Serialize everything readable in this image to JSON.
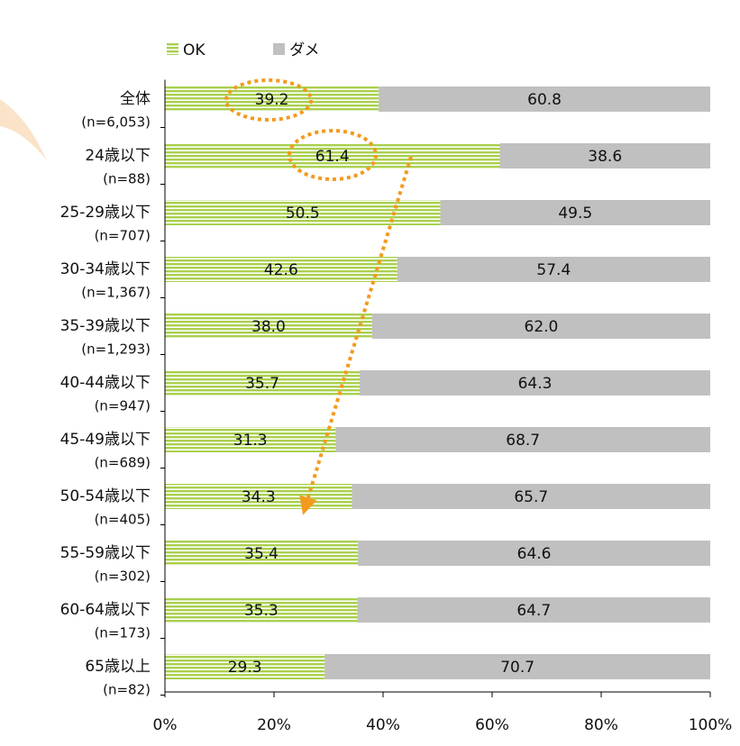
{
  "chart_data": {
    "type": "stacked-barh",
    "categories": [
      "全体",
      "24歳以下",
      "25-29歳以下",
      "30-34歳以下",
      "35-39歳以下",
      "40-44歳以下",
      "45-49歳以下",
      "50-54歳以下",
      "55-59歳以下",
      "60-64歳以下",
      "65歳以上"
    ],
    "sample_sizes": [
      "(n=6,053)",
      "(n=88)",
      "(n=707)",
      "(n=1,367)",
      "(n=1,293)",
      "(n=947)",
      "(n=689)",
      "(n=405)",
      "(n=302)",
      "(n=173)",
      "(n=82)"
    ],
    "series": [
      {
        "name": "OK",
        "color": "#a9d04d",
        "values": [
          39.2,
          61.4,
          50.5,
          42.6,
          38.0,
          35.7,
          31.3,
          34.3,
          35.4,
          35.3,
          29.3
        ],
        "value_labels": [
          "39.2",
          "61.4",
          "50.5",
          "42.6",
          "38.0",
          "35.7",
          "31.3",
          "34.3",
          "35.4",
          "35.3",
          "29.3"
        ]
      },
      {
        "name": "ダメ",
        "color": "#c0c0c0",
        "values": [
          60.8,
          38.6,
          49.5,
          57.4,
          62.0,
          64.3,
          68.7,
          65.7,
          64.6,
          64.7,
          70.7
        ],
        "value_labels": [
          "60.8",
          "38.6",
          "49.5",
          "57.4",
          "62.0",
          "64.3",
          "68.7",
          "65.7",
          "64.6",
          "64.7",
          "70.7"
        ]
      }
    ],
    "xlim": [
      0,
      100
    ],
    "xticks": [
      {
        "value": 0,
        "label": "0%"
      },
      {
        "value": 20,
        "label": "20%"
      },
      {
        "value": 40,
        "label": "40%"
      },
      {
        "value": 60,
        "label": "60%"
      },
      {
        "value": 80,
        "label": "80%"
      },
      {
        "value": 100,
        "label": "100%"
      }
    ],
    "legend": "top-left"
  }
}
